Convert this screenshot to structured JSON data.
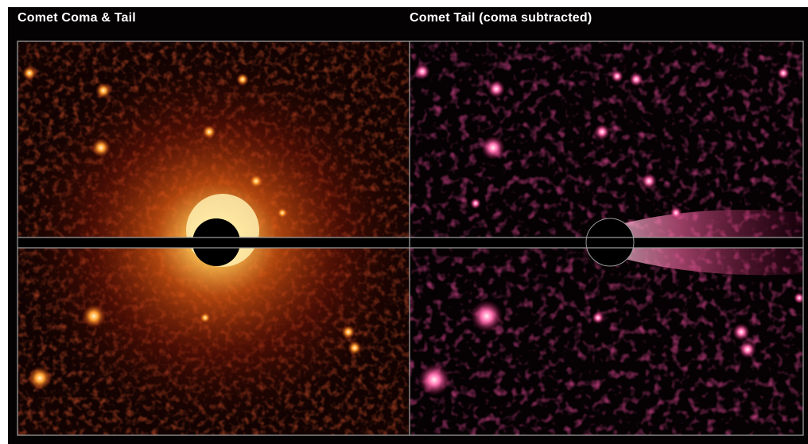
{
  "panels": {
    "left": {
      "title": "Comet Coma & Tail",
      "palette": "orange-heat"
    },
    "right": {
      "title": "Comet Tail (coma subtracted)",
      "palette": "magenta-heat"
    }
  },
  "colors": {
    "background": "#050203",
    "frame_line": "#9a9a9a",
    "occulter": "#000000",
    "left_glow": "#ffb040",
    "right_glow": "#ff4fa0"
  }
}
